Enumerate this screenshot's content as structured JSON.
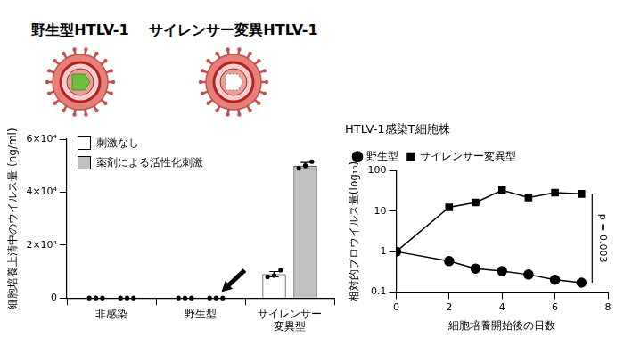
{
  "figure": {
    "labels": [
      "野生型HTLV-1",
      "サイレンサー変異HTLV-1"
    ]
  },
  "chart_data": [
    {
      "type": "bar",
      "categories": [
        "非感染",
        "野生型",
        [
          "サイレンサー",
          "変異型"
        ]
      ],
      "series": [
        {
          "name": "刺激なし",
          "color": "#ffffff",
          "values": [
            0,
            0,
            9000
          ],
          "errors": [
            0,
            0,
            1000
          ],
          "points": [
            [
              0,
              0,
              0
            ],
            [
              0,
              0,
              0
            ],
            [
              8000,
              8500,
              10500
            ]
          ]
        },
        {
          "name": "薬剤による活性化刺激",
          "color": "#c0c0c0",
          "values": [
            0,
            0,
            50000
          ],
          "errors": [
            0,
            0,
            1200
          ],
          "points": [
            [
              0,
              0,
              0
            ],
            [
              0,
              0,
              0
            ],
            [
              49000,
              50000,
              51500
            ]
          ]
        }
      ],
      "y_label": "細胞培養上清中のウイルス量 (ng/ml)",
      "ylim": [
        0,
        60000
      ],
      "yticks": [
        0,
        {
          "value": 20000,
          "label": "2×10⁴"
        },
        {
          "value": 40000,
          "label": "4×10⁴"
        },
        {
          "value": 60000,
          "label": "6×10⁴"
        }
      ],
      "grid": false,
      "legend": "top-left"
    },
    {
      "type": "line",
      "title": "HTLV-1感染T細胞株",
      "x": [
        0,
        2,
        3,
        4,
        5,
        6,
        7
      ],
      "series": [
        {
          "name": "野生型",
          "color": "#000000",
          "marker": "circle",
          "values": [
            1,
            0.58,
            0.38,
            0.33,
            0.27,
            0.2,
            0.17
          ]
        },
        {
          "name": "サイレンサー変異型",
          "color": "#000000",
          "marker": "square",
          "values": [
            1,
            12.5,
            16.5,
            33,
            22,
            29,
            27
          ]
        }
      ],
      "x_label": "細胞培養開始後の日数",
      "y_label": "相対的プロウイルス量(log₁₀)",
      "xlim": [
        0,
        8
      ],
      "xticks": [
        0,
        2,
        4,
        6,
        8
      ],
      "ylim": [
        0.1,
        100
      ],
      "yticks": [
        0.1,
        1,
        10,
        100
      ],
      "log": "y",
      "grid": false,
      "legend": "top",
      "annotation": "p = 0.003"
    }
  ]
}
